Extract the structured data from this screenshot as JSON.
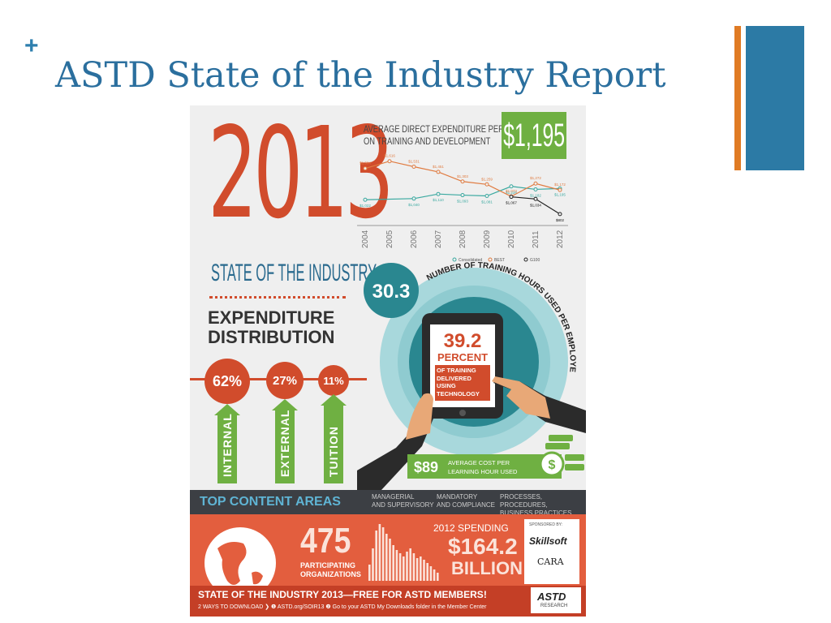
{
  "slide": {
    "bullet": "+",
    "title": "ASTD State of the Industry Report",
    "accent_orange": "#e07b24",
    "accent_blue": "#2c7aa5"
  },
  "infographic": {
    "year": "2013",
    "subtitle": "STATE OF THE INDUSTRY",
    "expenditure": {
      "title_line1": "EXPENDITURE",
      "title_line2": "DISTRIBUTION",
      "items": [
        {
          "percent": "62%",
          "label": "INTERNAL"
        },
        {
          "percent": "27%",
          "label": "EXTERNAL"
        },
        {
          "percent": "11%",
          "label": "TUITION"
        }
      ]
    },
    "big_value": "$1,195",
    "hours": {
      "value": "30.3",
      "label": "NUMBER OF TRAINING HOURS USED PER EMPLOYEE"
    },
    "tablet": {
      "value": "39.2",
      "unit": "PERCENT",
      "text": "OF TRAINING DELIVERED USING TECHNOLOGY"
    },
    "cost": {
      "value": "$89",
      "label_line1": "AVERAGE COST PER",
      "label_line2": "LEARNING HOUR USED"
    },
    "top_content": {
      "title": "TOP CONTENT AREAS",
      "items": [
        {
          "line1": "MANAGERIAL",
          "line2": "AND SUPERVISORY"
        },
        {
          "line1": "MANDATORY",
          "line2": "AND COMPLIANCE"
        },
        {
          "line1": "PROCESSES, PROCEDURES,",
          "line2": "BUSINESS PRACTICES"
        }
      ]
    },
    "orgs": {
      "value": "475",
      "label_line1": "PARTICIPATING",
      "label_line2": "ORGANIZATIONS"
    },
    "spending": {
      "label": "2012 SPENDING",
      "value": "$164.2",
      "unit": "BILLION"
    },
    "sponsors": {
      "label": "SPONSORED BY:",
      "sponsor1": "Skillsoft",
      "sponsor2": "CARA"
    },
    "footer": {
      "headline": "STATE OF THE INDUSTRY 2013—FREE FOR ASTD MEMBERS!",
      "ways": "2 WAYS TO DOWNLOAD",
      "way1": "ASTD.org/SOIR13",
      "way2": "Go to your ASTD My Downloads folder in the Member Center",
      "logo": "ASTD",
      "logo_sub": "RESEARCH"
    }
  },
  "chart_data": {
    "type": "line",
    "title": "AVERAGE DIRECT EXPENDITURE PER EMPLOYEE ON TRAINING AND DEVELOPMENT",
    "categories": [
      "2004",
      "2005",
      "2006",
      "2007",
      "2008",
      "2009",
      "2010",
      "2011",
      "2012"
    ],
    "ylim": [
      700,
      1700
    ],
    "series": [
      {
        "name": "Consolidated",
        "color": "#3aa9a0",
        "values": [
          1022,
          null,
          1040,
          1110,
          1093,
          1081,
          1228,
          1182,
          1195
        ]
      },
      {
        "name": "BEST",
        "color": "#e07b40",
        "values": [
          1504,
          1616,
          1531,
          1451,
          1303,
          1259,
          1073,
          1272,
          1172
        ]
      },
      {
        "name": "G100",
        "color": "#222222",
        "values": [
          null,
          null,
          null,
          null,
          null,
          null,
          1067,
          1034,
          802
        ]
      }
    ],
    "value_labels": [
      [
        "$1,022",
        "",
        "$1,040",
        "$1,110",
        "$1,093",
        "$1,081",
        "$1,228",
        "$1,182",
        "$1,195"
      ],
      [
        "$1,504",
        "$1,616",
        "$1,531",
        "$1,451",
        "$1,303",
        "$1,259",
        "$1,073",
        "$1,272",
        "$1,172"
      ],
      [
        "",
        "",
        "",
        "",
        "",
        "",
        "$1,067",
        "$1,034",
        "$802"
      ]
    ],
    "legend": "bottom-right"
  }
}
